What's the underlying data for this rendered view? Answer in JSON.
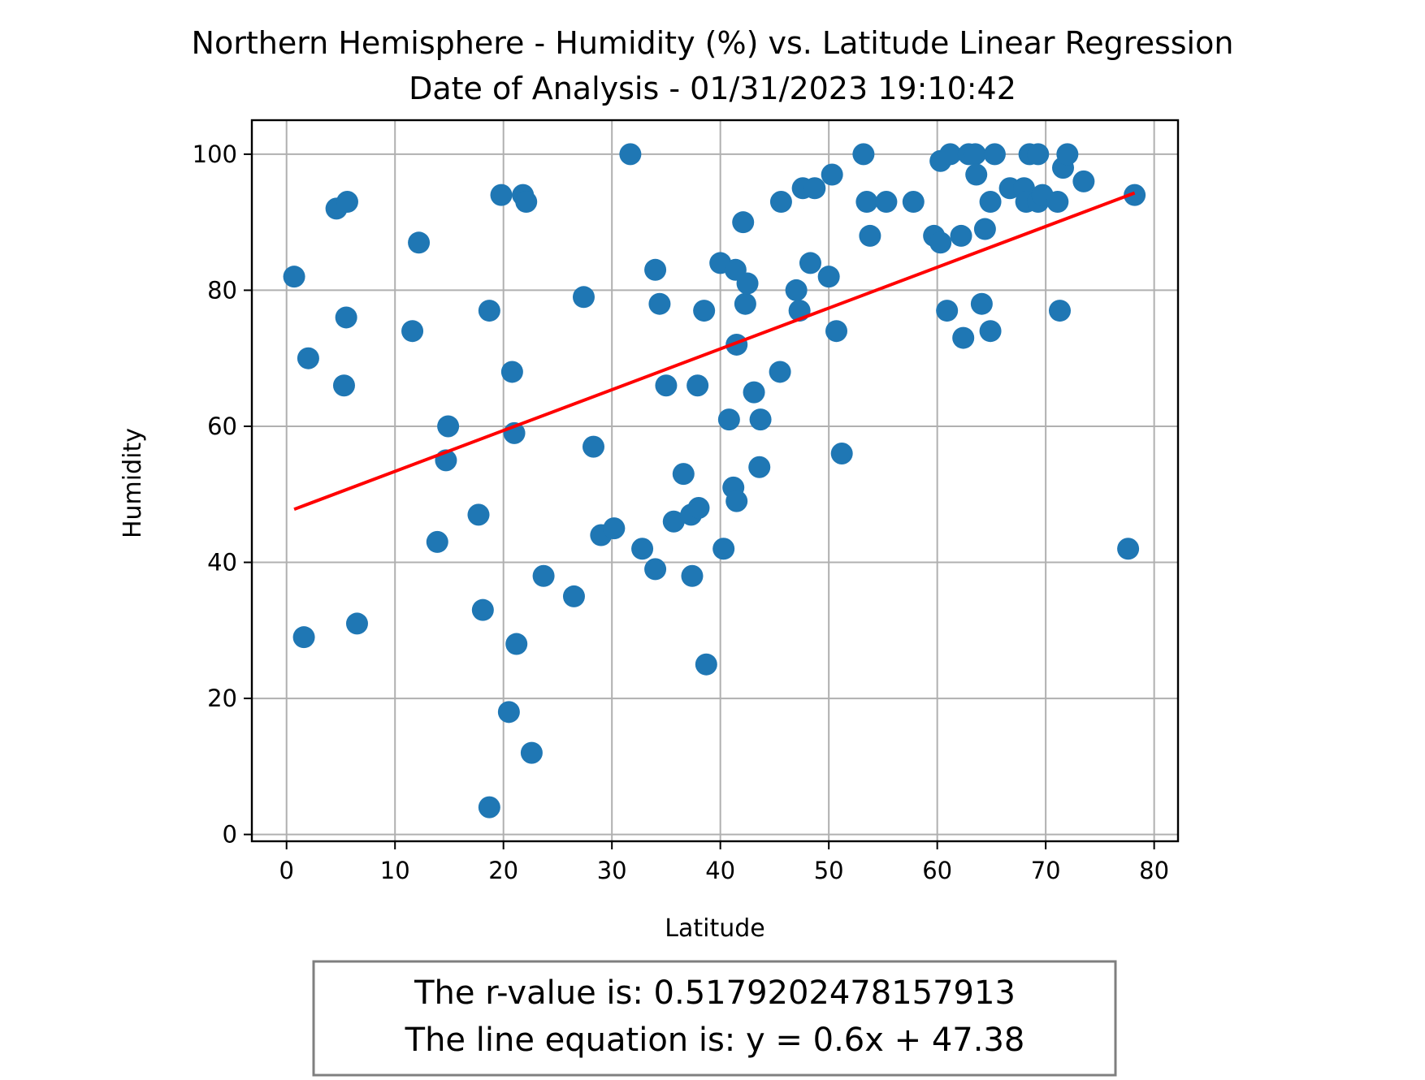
{
  "chart_data": {
    "type": "scatter",
    "title_line1": "Northern Hemisphere - Humidity (%) vs. Latitude Linear Regression",
    "title_line2": "Date of Analysis - 01/31/2023 19:10:42",
    "xlabel": "Latitude",
    "ylabel": "Humidity",
    "xlim": [
      -3.2,
      82.2
    ],
    "ylim": [
      -1,
      105
    ],
    "xticks": [
      0,
      10,
      20,
      30,
      40,
      50,
      60,
      70,
      80
    ],
    "yticks": [
      0,
      20,
      40,
      60,
      80,
      100
    ],
    "grid": true,
    "marker_color": "#1f77b4",
    "line_color": "#ff0000",
    "regression": {
      "slope": 0.6,
      "intercept": 47.38,
      "x_range": [
        0.7,
        78.2
      ]
    },
    "annotation_line1": "The r-value is: 0.5179202478157913",
    "annotation_line2": "The line equation is: y = 0.6x + 47.38",
    "points": [
      [
        0.7,
        82
      ],
      [
        1.6,
        29
      ],
      [
        2.0,
        70
      ],
      [
        4.6,
        92
      ],
      [
        5.3,
        66
      ],
      [
        5.5,
        76
      ],
      [
        5.6,
        93
      ],
      [
        6.5,
        31
      ],
      [
        11.6,
        74
      ],
      [
        12.2,
        87
      ],
      [
        13.9,
        43
      ],
      [
        14.7,
        55
      ],
      [
        14.9,
        60
      ],
      [
        17.7,
        47
      ],
      [
        18.1,
        33
      ],
      [
        18.7,
        77
      ],
      [
        18.7,
        4
      ],
      [
        19.8,
        94
      ],
      [
        20.5,
        18
      ],
      [
        20.8,
        68
      ],
      [
        21.0,
        59
      ],
      [
        21.2,
        28
      ],
      [
        21.8,
        94
      ],
      [
        22.1,
        93
      ],
      [
        22.6,
        12
      ],
      [
        23.7,
        38
      ],
      [
        26.5,
        35
      ],
      [
        27.4,
        79
      ],
      [
        28.3,
        57
      ],
      [
        29.0,
        44
      ],
      [
        30.2,
        45
      ],
      [
        31.7,
        100
      ],
      [
        32.8,
        42
      ],
      [
        34.0,
        39
      ],
      [
        34.0,
        83
      ],
      [
        34.4,
        78
      ],
      [
        35.0,
        66
      ],
      [
        35.7,
        46
      ],
      [
        36.6,
        53
      ],
      [
        37.3,
        47
      ],
      [
        37.4,
        38
      ],
      [
        37.9,
        66
      ],
      [
        38.0,
        48
      ],
      [
        38.5,
        77
      ],
      [
        38.7,
        25
      ],
      [
        40.0,
        84
      ],
      [
        40.3,
        42
      ],
      [
        40.8,
        61
      ],
      [
        41.2,
        51
      ],
      [
        41.4,
        83
      ],
      [
        41.5,
        72
      ],
      [
        41.5,
        49
      ],
      [
        42.1,
        90
      ],
      [
        42.3,
        78
      ],
      [
        42.5,
        81
      ],
      [
        43.1,
        65
      ],
      [
        43.6,
        54
      ],
      [
        43.7,
        61
      ],
      [
        45.5,
        68
      ],
      [
        45.6,
        93
      ],
      [
        47.0,
        80
      ],
      [
        47.3,
        77
      ],
      [
        47.6,
        95
      ],
      [
        48.3,
        84
      ],
      [
        48.7,
        95
      ],
      [
        50.0,
        82
      ],
      [
        50.3,
        97
      ],
      [
        50.7,
        74
      ],
      [
        51.2,
        56
      ],
      [
        53.2,
        100
      ],
      [
        53.5,
        93
      ],
      [
        53.8,
        88
      ],
      [
        55.3,
        93
      ],
      [
        57.8,
        93
      ],
      [
        59.7,
        88
      ],
      [
        60.3,
        87
      ],
      [
        60.3,
        99
      ],
      [
        60.9,
        77
      ],
      [
        61.2,
        100
      ],
      [
        62.2,
        88
      ],
      [
        62.4,
        73
      ],
      [
        62.9,
        100
      ],
      [
        63.5,
        100
      ],
      [
        63.6,
        97
      ],
      [
        64.1,
        78
      ],
      [
        64.4,
        89
      ],
      [
        64.9,
        93
      ],
      [
        64.9,
        74
      ],
      [
        65.3,
        100
      ],
      [
        66.7,
        95
      ],
      [
        68.0,
        95
      ],
      [
        68.2,
        93
      ],
      [
        68.5,
        100
      ],
      [
        69.3,
        100
      ],
      [
        69.3,
        93
      ],
      [
        69.7,
        94
      ],
      [
        71.1,
        93
      ],
      [
        71.3,
        77
      ],
      [
        71.6,
        98
      ],
      [
        72.0,
        100
      ],
      [
        73.5,
        96
      ],
      [
        77.6,
        42
      ],
      [
        78.2,
        94
      ]
    ]
  }
}
